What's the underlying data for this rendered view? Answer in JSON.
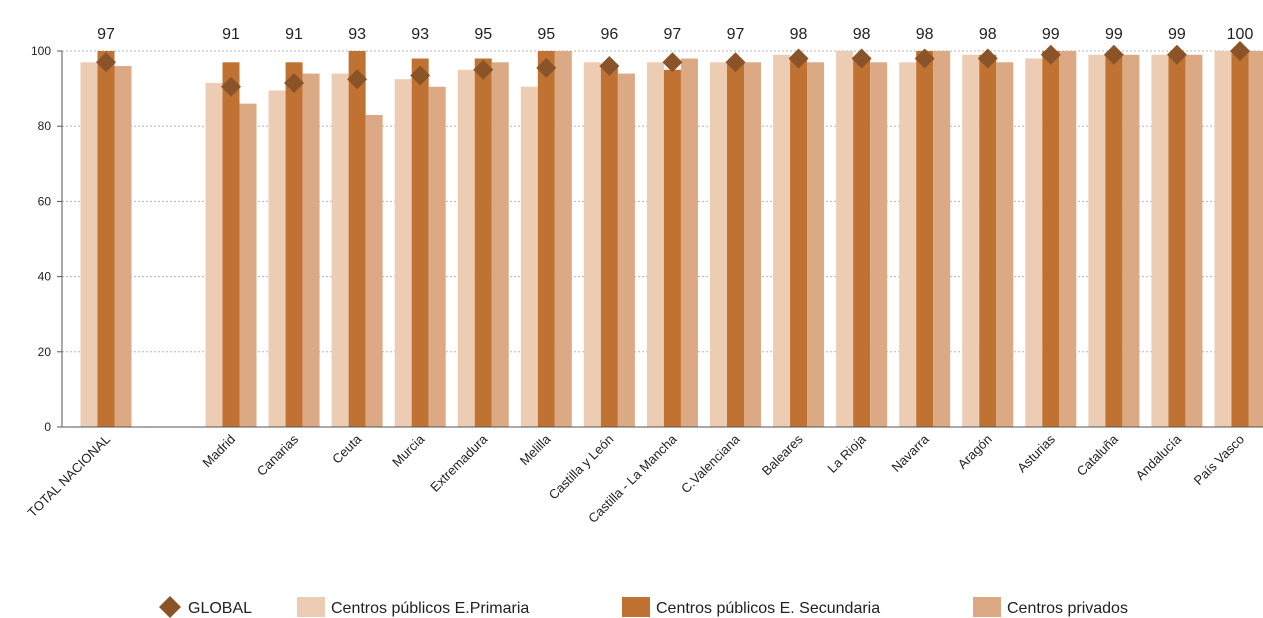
{
  "chart_data": {
    "type": "bar",
    "categories": [
      "TOTAL NACIONAL",
      "Madrid",
      "Canarias",
      "Ceuta",
      "Murcia",
      "Extremadura",
      "Melilla",
      "Castilla y León",
      "Castilla - La Mancha",
      "C.Valenciana",
      "Baleares",
      "La Rioja",
      "Navarra",
      "Aragón",
      "Asturias",
      "Cataluña",
      "Andalucía",
      "País Vasco"
    ],
    "series": [
      {
        "name": "Centros públicos E.Primaria",
        "color": "#ecccb3",
        "values": [
          97,
          91.5,
          89.5,
          94,
          92.5,
          95,
          90.5,
          97,
          97,
          97,
          99,
          100,
          97,
          99,
          98,
          99,
          99,
          100
        ]
      },
      {
        "name": "Centros públicos E. Secundaria",
        "color": "#c07232",
        "values": [
          100,
          97,
          97,
          100,
          98,
          98,
          100,
          96,
          95,
          97,
          98,
          98,
          100,
          99,
          100,
          99,
          99,
          100
        ]
      },
      {
        "name": "Centros privados",
        "color": "#dba983",
        "values": [
          96,
          86,
          94,
          83,
          90.5,
          97,
          100,
          94,
          98,
          97,
          97,
          97,
          100,
          97,
          100,
          99,
          99,
          100
        ]
      },
      {
        "name": "GLOBAL",
        "type": "marker",
        "marker": "diamond",
        "color": "#8a5428",
        "values": [
          97,
          90.5,
          91.5,
          92.5,
          93.5,
          95,
          95.5,
          96,
          97,
          97,
          98,
          98,
          98,
          98,
          99,
          99,
          99,
          100
        ]
      }
    ],
    "data_labels": [
      "97",
      "91",
      "91",
      "93",
      "93",
      "95",
      "95",
      "96",
      "97",
      "97",
      "98",
      "98",
      "98",
      "98",
      "99",
      "99",
      "99",
      "100"
    ],
    "yticks": [
      "0",
      "20",
      "40",
      "60",
      "80",
      "100"
    ],
    "ylim": [
      0,
      100
    ],
    "title": "",
    "xlabel": "",
    "ylabel": "",
    "grid": true,
    "legend_position": "bottom"
  }
}
